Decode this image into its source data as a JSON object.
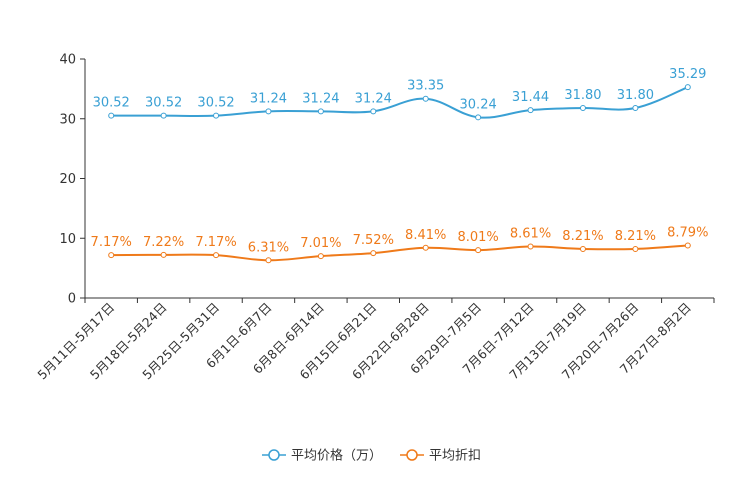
{
  "chart_data": {
    "type": "line",
    "title": "",
    "xlabel": "",
    "ylabel": "",
    "ylim": [
      0,
      40
    ],
    "yticks": [
      0,
      10,
      20,
      30,
      40
    ],
    "grid": false,
    "legend_position": "bottom-center",
    "categories": [
      "5月11日-5月17日",
      "5月18日-5月24日",
      "5月25日-5月31日",
      "6月1日-6月7日",
      "6月8日-6月14日",
      "6月15日-6月21日",
      "6月22日-6月28日",
      "6月29日-7月5日",
      "7月6日-7月12日",
      "7月13日-7月19日",
      "7月20日-7月26日",
      "7月27日-8月2日"
    ],
    "series": [
      {
        "name": "平均价格（万）",
        "color": "#3aa0d4",
        "values": [
          30.52,
          30.52,
          30.52,
          31.24,
          31.24,
          31.24,
          33.35,
          30.24,
          31.44,
          31.8,
          31.8,
          35.29
        ],
        "labels": [
          "30.52",
          "30.52",
          "30.52",
          "31.24",
          "31.24",
          "31.24",
          "33.35",
          "30.24",
          "31.44",
          "31.80",
          "31.80",
          "35.29"
        ]
      },
      {
        "name": "平均折扣",
        "color": "#ef7a1a",
        "values": [
          7.17,
          7.22,
          7.17,
          6.31,
          7.01,
          7.52,
          8.41,
          8.01,
          8.61,
          8.21,
          8.21,
          8.79
        ],
        "labels": [
          "7.17%",
          "7.22%",
          "7.17%",
          "6.31%",
          "7.01%",
          "7.52%",
          "8.41%",
          "8.01%",
          "8.61%",
          "8.21%",
          "8.21%",
          "8.79%"
        ]
      }
    ]
  }
}
